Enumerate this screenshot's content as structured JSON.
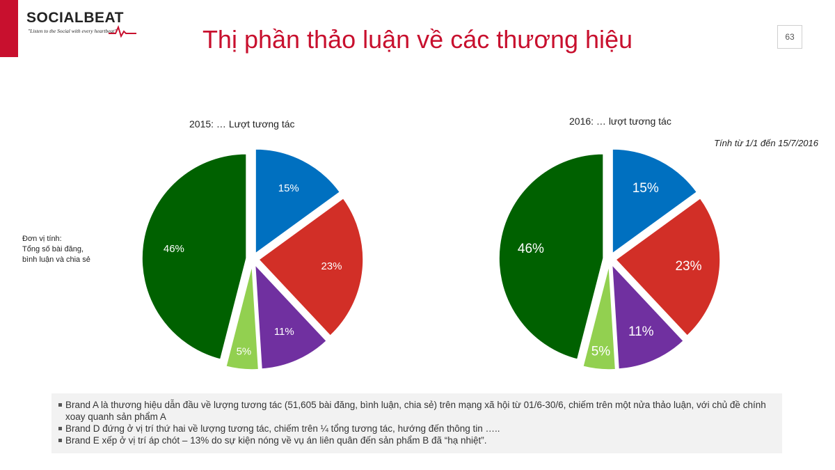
{
  "header": {
    "logo_text": "SOCIALBEAT",
    "logo_tagline": "\"Listen to the Social with every heartbeat\"",
    "title": "Thị phần thảo luận về các thương hiệu",
    "page_number": "63"
  },
  "unit_note": [
    "Đơn vị tính:",
    "Tổng số bài đăng,",
    "bình luận và chia sẻ"
  ],
  "date_note": "Tính từ 1/1 đến 15/7/2016",
  "colors": {
    "accent_red": "#c8102e"
  },
  "chart_data": [
    {
      "type": "pie",
      "title": "2015: … Lượt tương tác",
      "values": [
        15,
        23,
        11,
        5,
        46
      ],
      "labels": [
        "15%",
        "23%",
        "11%",
        "5%",
        "46%"
      ],
      "colors": [
        "#0070c0",
        "#d22f27",
        "#7030a0",
        "#92d050",
        "#006100"
      ]
    },
    {
      "type": "pie",
      "title": "2016: … lượt tương tác",
      "values": [
        15,
        23,
        11,
        5,
        46
      ],
      "labels": [
        "15%",
        "23%",
        "11%",
        "5%",
        "46%"
      ],
      "colors": [
        "#0070c0",
        "#d22f27",
        "#7030a0",
        "#92d050",
        "#006100"
      ]
    }
  ],
  "notes": [
    "Brand A là thương hiệu dẫn đầu về lượng tương tác (51,605 bài đăng, bình luận, chia sẻ) trên mạng xã hội từ 01/6-30/6, chiếm trên một nửa thảo luận, với chủ đề chính xoay quanh sản phẩm A",
    "Brand D đứng ở vị trí thứ hai về lượng tương tác, chiếm trên ¼ tổng tương tác, hướng đến thông tin …..",
    "Brand E xếp ở vị trí áp chót – 13% do sự kiện nóng về vụ án liên quân đến sản phẩm B đã “hạ nhiệt”."
  ]
}
